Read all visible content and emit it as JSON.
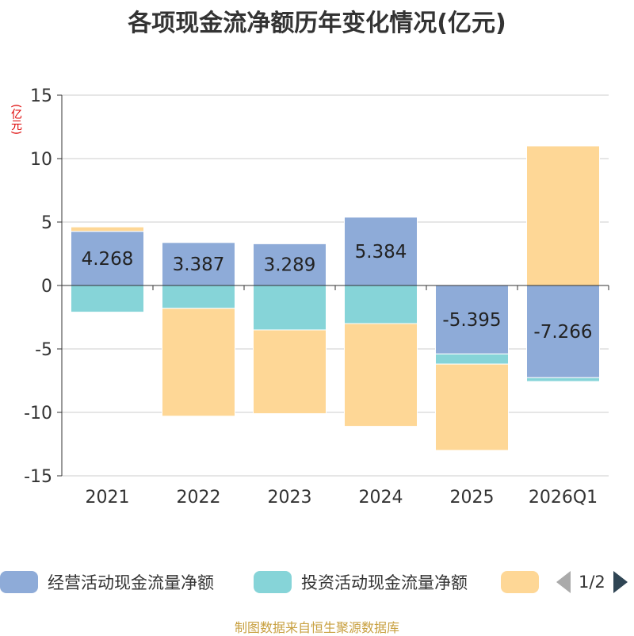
{
  "chart_data": {
    "type": "bar",
    "stacked": true,
    "title": "各项现金流净额历年变化情况(亿元)",
    "ylabel": "(亿元)",
    "ylim": [
      -15,
      15
    ],
    "yticks": [
      15,
      10,
      5,
      0,
      -5,
      -10,
      -15
    ],
    "categories": [
      "2021",
      "2022",
      "2023",
      "2024",
      "2025",
      "2026Q1"
    ],
    "series": [
      {
        "name": "经营活动现金流量净额",
        "color": "#8eabd8",
        "values": [
          4.268,
          3.387,
          3.289,
          5.384,
          -5.395,
          -7.266
        ],
        "labels": [
          "4.268",
          "3.387",
          "3.289",
          "5.384",
          "-5.395",
          "-7.266"
        ]
      },
      {
        "name": "投资活动现金流量净额",
        "color": "#86d4d8",
        "values": [
          -2.1,
          -1.8,
          -3.5,
          -3.0,
          -0.8,
          -0.3
        ]
      },
      {
        "name": "",
        "color": "#fed796",
        "values": [
          0.35,
          -8.5,
          -6.6,
          -8.1,
          -6.8,
          11.0
        ]
      }
    ],
    "legend": {
      "position": "bottom",
      "page": "1/2"
    }
  },
  "footer": "制图数据来自恒生聚源数据库"
}
